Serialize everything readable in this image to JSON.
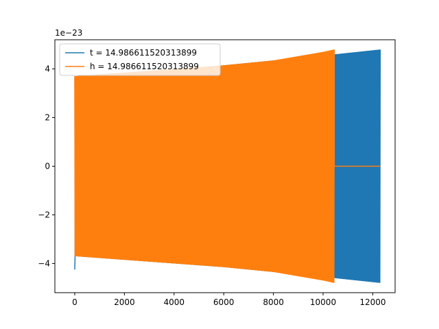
{
  "chart_data": {
    "type": "line",
    "title": "",
    "xlabel": "",
    "ylabel": "",
    "xlim": [
      -800,
      12900
    ],
    "ylim": [
      -5.2,
      5.2
    ],
    "y_offset_label": "1e−23",
    "x_ticks": [
      0,
      2000,
      4000,
      6000,
      8000,
      10000,
      12000
    ],
    "x_tick_labels": [
      "0",
      "2000",
      "4000",
      "6000",
      "8000",
      "10000",
      "12000"
    ],
    "y_ticks": [
      -4,
      -2,
      0,
      2,
      4
    ],
    "y_tick_labels": [
      "−4",
      "−2",
      "0",
      "2",
      "4"
    ],
    "grid": false,
    "legend_position": "top-left",
    "series": [
      {
        "name": "t = 14.986611520313899",
        "color": "#1f77b4",
        "kind": "oscillation-envelope",
        "x_start": 0,
        "x_end": 12300,
        "envelope_upper": [
          [
            0,
            3.7
          ],
          [
            2000,
            3.85
          ],
          [
            4000,
            4.0
          ],
          [
            6000,
            4.15
          ],
          [
            8000,
            4.35
          ],
          [
            10000,
            4.55
          ],
          [
            12300,
            4.8
          ]
        ],
        "envelope_lower": [
          [
            0,
            -3.7
          ],
          [
            2000,
            -3.85
          ],
          [
            4000,
            -4.0
          ],
          [
            6000,
            -4.15
          ],
          [
            8000,
            -4.35
          ],
          [
            10000,
            -4.55
          ],
          [
            12300,
            -4.8
          ]
        ],
        "initial_spike": -4.25
      },
      {
        "name": "h = 14.986611520313899",
        "color": "#ff7f0e",
        "kind": "oscillation-envelope",
        "x_start": 0,
        "x_end": 10450,
        "tail_flat_value": 0,
        "tail_x_end": 12300,
        "envelope_upper": [
          [
            0,
            3.7
          ],
          [
            2000,
            3.85
          ],
          [
            4000,
            4.0
          ],
          [
            6000,
            4.15
          ],
          [
            8000,
            4.35
          ],
          [
            10000,
            4.7
          ],
          [
            10450,
            4.8
          ]
        ],
        "envelope_lower": [
          [
            0,
            -3.7
          ],
          [
            2000,
            -3.85
          ],
          [
            4000,
            -4.0
          ],
          [
            6000,
            -4.15
          ],
          [
            8000,
            -4.35
          ],
          [
            10000,
            -4.7
          ],
          [
            10450,
            -4.8
          ]
        ]
      }
    ]
  }
}
